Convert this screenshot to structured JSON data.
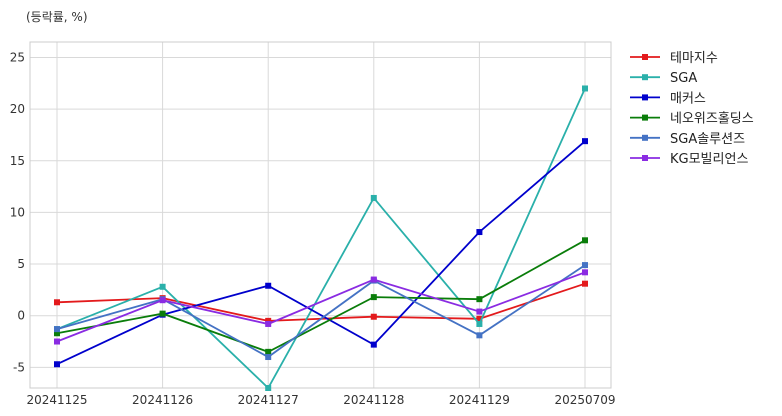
{
  "unit_label": "(등락률, %)",
  "chart_data": {
    "type": "line",
    "categories": [
      "20241125",
      "20241126",
      "20241127",
      "20241128",
      "20241129",
      "20250709"
    ],
    "ylim": [
      -7,
      26.5
    ],
    "yticks": [
      -5,
      0,
      5,
      10,
      15,
      20,
      25
    ],
    "grid": true,
    "legend_position": "right",
    "series": [
      {
        "name": "테마지수",
        "color": "#e31a1c",
        "values": [
          1.3,
          1.7,
          -0.5,
          -0.1,
          -0.3,
          3.1
        ]
      },
      {
        "name": "SGA",
        "color": "#2ab0aa",
        "values": [
          -1.3,
          2.8,
          -7.0,
          11.4,
          -0.8,
          22.0
        ]
      },
      {
        "name": "매커스",
        "color": "#0000cc",
        "values": [
          -4.7,
          0.1,
          2.9,
          -2.8,
          8.1,
          16.9
        ]
      },
      {
        "name": "네오위즈홀딩스",
        "color": "#0a7d0a",
        "values": [
          -1.7,
          0.2,
          -3.5,
          1.8,
          1.6,
          7.3
        ]
      },
      {
        "name": "SGA솔루션즈",
        "color": "#4472c4",
        "values": [
          -1.3,
          1.6,
          -4.0,
          3.4,
          -1.9,
          4.9
        ]
      },
      {
        "name": "KG모빌리언스",
        "color": "#8a2be2",
        "values": [
          -2.5,
          1.5,
          -0.8,
          3.5,
          0.4,
          4.2
        ]
      }
    ]
  }
}
